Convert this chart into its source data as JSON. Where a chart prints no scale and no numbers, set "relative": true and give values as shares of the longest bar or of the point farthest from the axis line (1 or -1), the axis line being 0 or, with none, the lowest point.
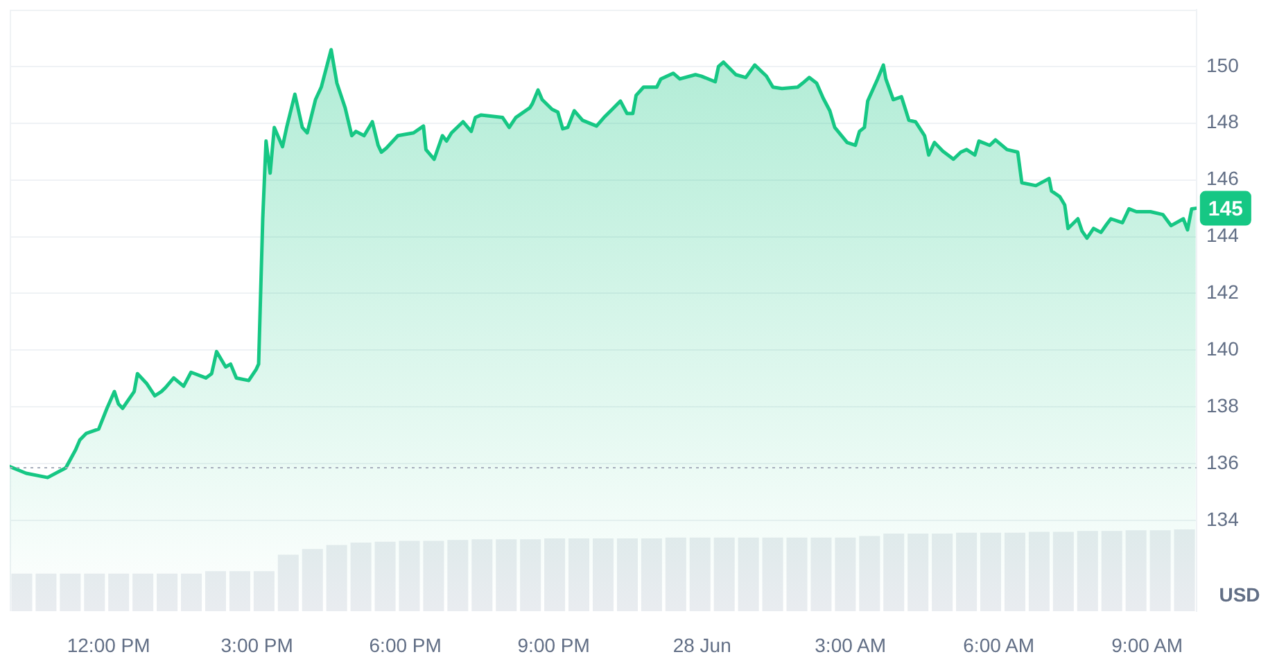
{
  "chart_data": [
    {
      "type": "area",
      "color": "#16c784",
      "ylabel": "USD",
      "x": [
        "--06-27T10:00",
        "--06-27T10:20",
        "--06-27T10:46",
        "--06-27T11:08",
        "--06-27T11:20",
        "--06-27T11:25",
        "--06-27T11:33",
        "--06-27T11:48",
        "--06-27T11:58",
        "--06-27T12:07",
        "--06-27T12:12",
        "--06-27T12:17",
        "--06-27T12:31",
        "--06-27T12:35",
        "--06-27T12:46",
        "--06-27T12:56",
        "--06-27T13:04",
        "--06-27T13:09",
        "--06-27T13:19",
        "--06-27T13:31",
        "--06-27T13:40",
        "--06-27T13:58",
        "--06-27T14:05",
        "--06-27T14:11",
        "--06-27T14:22",
        "--06-27T14:28",
        "--06-27T14:35",
        "--06-27T14:50",
        "--06-27T14:59",
        "--06-27T15:02",
        "--06-27T15:07",
        "--06-27T15:11",
        "--06-27T15:16",
        "--06-27T15:21",
        "--06-27T15:31",
        "--06-27T15:36",
        "--06-27T15:46",
        "--06-27T15:55",
        "--06-27T16:01",
        "--06-27T16:11",
        "--06-27T16:18",
        "--06-27T16:30",
        "--06-27T16:37",
        "--06-27T16:47",
        "--06-27T16:55",
        "--06-27T17:00",
        "--06-27T17:10",
        "--06-27T17:20",
        "--06-27T17:27",
        "--06-27T17:31",
        "--06-27T17:37",
        "--06-27T17:51",
        "--06-27T18:10",
        "--06-27T18:22",
        "--06-27T18:25",
        "--06-27T18:35",
        "--06-27T18:45",
        "--06-27T18:50",
        "--06-27T18:56",
        "--06-27T19:10",
        "--06-27T19:20",
        "--06-27T19:25",
        "--06-27T19:32",
        "--06-27T19:58",
        "--06-27T20:06",
        "--06-27T20:14",
        "--06-27T20:31",
        "--06-27T20:34",
        "--06-27T20:41",
        "--06-27T20:46",
        "--06-27T20:58",
        "--06-27T21:05",
        "--06-27T21:11",
        "--06-27T21:17",
        "--06-27T21:25",
        "--06-27T21:35",
        "--06-27T21:52",
        "--06-27T22:01",
        "--06-27T22:11",
        "--06-27T22:21",
        "--06-27T22:29",
        "--06-27T22:36",
        "--06-27T22:40",
        "--06-27T22:49",
        "--06-27T23:05",
        "--06-27T23:10",
        "--06-27T23:25",
        "--06-27T23:33",
        "--06-27T23:52",
        "--06-27T23:59",
        "--06-28T00:16",
        "--06-28T00:20",
        "--06-28T00:26",
        "--06-28T00:41",
        "--06-28T00:53",
        "--06-28T01:04",
        "--06-28T01:18",
        "--06-28T01:26",
        "--06-28T01:37",
        "--06-28T01:56",
        "--06-28T02:02",
        "--06-28T02:10",
        "--06-28T02:19",
        "--06-28T02:27",
        "--06-28T02:35",
        "--06-28T02:41",
        "--06-28T02:56",
        "--06-28T03:06",
        "--06-28T03:11",
        "--06-28T03:17",
        "--06-28T03:21",
        "--06-28T03:33",
        "--06-28T03:40",
        "--06-28T03:43",
        "--06-28T03:52",
        "--06-28T04:02",
        "--06-28T04:11",
        "--06-28T04:19",
        "--06-28T04:30",
        "--06-28T04:35",
        "--06-28T04:42",
        "--06-28T04:52",
        "--06-28T05:05",
        "--06-28T05:14",
        "--06-28T05:21",
        "--06-28T05:31",
        "--06-28T05:36",
        "--06-28T05:49",
        "--06-28T05:56",
        "--06-28T06:10",
        "--06-28T06:23",
        "--06-28T06:28",
        "--06-28T06:45",
        "--06-28T07:01",
        "--06-28T07:04",
        "--06-28T07:14",
        "--06-28T07:20",
        "--06-28T07:24",
        "--06-28T07:36",
        "--06-28T07:41",
        "--06-28T07:47",
        "--06-28T07:55",
        "--06-28T08:04",
        "--06-28T08:11",
        "--06-28T08:16",
        "--06-28T08:30",
        "--06-28T08:38",
        "--06-28T08:47",
        "--06-28T09:04",
        "--06-28T09:19",
        "--06-28T09:29",
        "--06-28T09:44",
        "--06-28T09:49",
        "--06-28T09:54",
        "--06-28T09:59"
      ],
      "values": [
        135.9,
        135.66,
        135.51,
        135.85,
        136.49,
        136.83,
        137.07,
        137.22,
        137.95,
        138.54,
        138.1,
        137.95,
        138.54,
        139.17,
        138.83,
        138.39,
        138.54,
        138.68,
        139.02,
        138.73,
        139.22,
        139.02,
        139.17,
        139.95,
        139.41,
        139.51,
        139.02,
        138.93,
        139.32,
        139.51,
        144.63,
        147.37,
        146.24,
        147.85,
        147.17,
        147.85,
        149.02,
        147.85,
        147.66,
        148.83,
        149.27,
        150.59,
        149.41,
        148.54,
        147.56,
        147.71,
        147.56,
        148.05,
        147.22,
        146.98,
        147.12,
        147.56,
        147.66,
        147.9,
        147.07,
        146.73,
        147.56,
        147.37,
        147.66,
        148.05,
        147.71,
        148.2,
        148.29,
        148.2,
        147.85,
        148.2,
        148.54,
        148.68,
        149.17,
        148.83,
        148.49,
        148.39,
        147.8,
        147.85,
        148.44,
        148.1,
        147.9,
        148.2,
        148.49,
        148.78,
        148.34,
        148.34,
        148.98,
        149.27,
        149.27,
        149.56,
        149.76,
        149.56,
        149.71,
        149.66,
        149.46,
        150.0,
        150.15,
        149.71,
        149.61,
        150.05,
        149.66,
        149.27,
        149.22,
        149.27,
        149.41,
        149.61,
        149.41,
        148.88,
        148.44,
        147.85,
        147.32,
        147.22,
        147.71,
        147.85,
        148.78,
        149.56,
        150.05,
        149.56,
        148.83,
        148.93,
        148.1,
        148.05,
        147.56,
        146.88,
        147.32,
        147.02,
        146.73,
        146.98,
        147.07,
        146.88,
        147.37,
        147.22,
        147.41,
        147.07,
        146.98,
        145.9,
        145.8,
        146.05,
        145.61,
        145.41,
        145.12,
        144.29,
        144.63,
        144.2,
        143.95,
        144.29,
        144.15,
        144.44,
        144.63,
        144.49,
        144.98,
        144.88,
        144.88,
        144.78,
        144.39,
        144.63,
        144.24,
        144.98,
        145.0
      ],
      "xlim": [
        "--06-27T10:00",
        "--06-28T10:00"
      ],
      "xticks": [
        {
          "value": "--06-27T12:00",
          "label": "12:00 PM"
        },
        {
          "value": "--06-27T15:00",
          "label": "3:00 PM"
        },
        {
          "value": "--06-27T18:00",
          "label": "6:00 PM"
        },
        {
          "value": "--06-27T21:00",
          "label": "9:00 PM"
        },
        {
          "value": "--06-28T00:00",
          "label": "28 Jun"
        },
        {
          "value": "--06-28T03:00",
          "label": "3:00 AM"
        },
        {
          "value": "--06-28T06:00",
          "label": "6:00 AM"
        },
        {
          "value": "--06-28T09:00",
          "label": "9:00 AM"
        }
      ],
      "ylim": [
        130.8,
        152
      ],
      "yticks": [
        134,
        136,
        138,
        140,
        142,
        144,
        146,
        148,
        150
      ],
      "grid": "y",
      "ref_lines": [
        {
          "axis": "y",
          "value": 135.9,
          "color": "#a6adbb",
          "line_style": "dotted"
        }
      ],
      "annotations": [
        {
          "text": "145",
          "x": "--06-28T09:59",
          "y": 145
        }
      ]
    },
    {
      "type": "bar",
      "relative": true,
      "color": "#e9ecf0",
      "categories": [
        null,
        null,
        null,
        null,
        null,
        null,
        null,
        null,
        null,
        null,
        null,
        null,
        null,
        null,
        null,
        null,
        null,
        null,
        null,
        null,
        null,
        null,
        null,
        null,
        null,
        null,
        null,
        null,
        null,
        null,
        null,
        null,
        null,
        null,
        null,
        null,
        null,
        null,
        null,
        null,
        null,
        null,
        null,
        null,
        null,
        null,
        null,
        null,
        null
      ],
      "values": [
        0.46,
        0.46,
        0.46,
        0.46,
        0.46,
        0.46,
        0.46,
        0.46,
        0.49,
        0.49,
        0.49,
        0.69,
        0.76,
        0.81,
        0.84,
        0.85,
        0.86,
        0.86,
        0.87,
        0.88,
        0.88,
        0.88,
        0.89,
        0.89,
        0.89,
        0.89,
        0.89,
        0.9,
        0.9,
        0.9,
        0.9,
        0.9,
        0.9,
        0.9,
        0.9,
        0.92,
        0.95,
        0.95,
        0.95,
        0.96,
        0.96,
        0.96,
        0.97,
        0.97,
        0.98,
        0.98,
        0.99,
        0.99,
        1
      ]
    }
  ]
}
